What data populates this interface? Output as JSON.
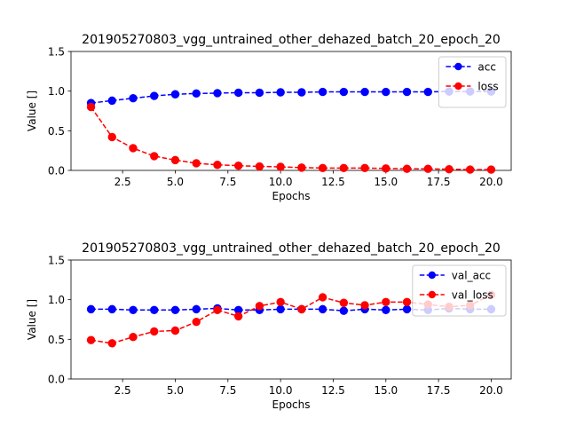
{
  "chart_data": [
    {
      "type": "line",
      "title": "201905270803_vgg_untrained_other_dehazed_batch_20_epoch_20",
      "xlabel": "Epochs",
      "ylabel": "Value []",
      "xlim": [
        0.05,
        20.95
      ],
      "ylim": [
        0,
        1.5
      ],
      "xticks": [
        "2.5",
        "5.0",
        "7.5",
        "10.0",
        "12.5",
        "15.0",
        "17.5",
        "20.0"
      ],
      "yticks": [
        "0.0",
        "0.5",
        "1.0",
        "1.5"
      ],
      "legend_position": "top-right",
      "x": [
        1,
        2,
        3,
        4,
        5,
        6,
        7,
        8,
        9,
        10,
        11,
        12,
        13,
        14,
        15,
        16,
        17,
        18,
        19,
        20
      ],
      "series": [
        {
          "name": "acc",
          "color": "#0000ff",
          "values": [
            0.85,
            0.88,
            0.91,
            0.94,
            0.96,
            0.97,
            0.975,
            0.98,
            0.98,
            0.985,
            0.985,
            0.99,
            0.99,
            0.99,
            0.99,
            0.99,
            0.99,
            0.995,
            0.995,
            0.995
          ]
        },
        {
          "name": "loss",
          "color": "#ff0000",
          "values": [
            0.8,
            0.42,
            0.28,
            0.18,
            0.13,
            0.09,
            0.07,
            0.06,
            0.05,
            0.045,
            0.035,
            0.03,
            0.03,
            0.03,
            0.025,
            0.02,
            0.02,
            0.015,
            0.01,
            0.01
          ]
        }
      ]
    },
    {
      "type": "line",
      "title": "201905270803_vgg_untrained_other_dehazed_batch_20_epoch_20",
      "xlabel": "Epochs",
      "ylabel": "Value []",
      "xlim": [
        0.05,
        20.95
      ],
      "ylim": [
        0,
        1.5
      ],
      "xticks": [
        "2.5",
        "5.0",
        "7.5",
        "10.0",
        "12.5",
        "15.0",
        "17.5",
        "20.0"
      ],
      "yticks": [
        "0.0",
        "0.5",
        "1.0",
        "1.5"
      ],
      "legend_position": "top-right",
      "x": [
        1,
        2,
        3,
        4,
        5,
        6,
        7,
        8,
        9,
        10,
        11,
        12,
        13,
        14,
        15,
        16,
        17,
        18,
        19,
        20
      ],
      "series": [
        {
          "name": "val_acc",
          "color": "#0000ff",
          "values": [
            0.88,
            0.88,
            0.87,
            0.87,
            0.87,
            0.88,
            0.89,
            0.87,
            0.87,
            0.88,
            0.88,
            0.88,
            0.86,
            0.88,
            0.87,
            0.88,
            0.87,
            0.89,
            0.88,
            0.88
          ]
        },
        {
          "name": "val_loss",
          "color": "#ff0000",
          "values": [
            0.49,
            0.45,
            0.53,
            0.6,
            0.61,
            0.72,
            0.87,
            0.79,
            0.92,
            0.97,
            0.88,
            1.03,
            0.96,
            0.93,
            0.97,
            0.97,
            0.94,
            0.91,
            0.93,
            1.06
          ]
        }
      ]
    }
  ]
}
